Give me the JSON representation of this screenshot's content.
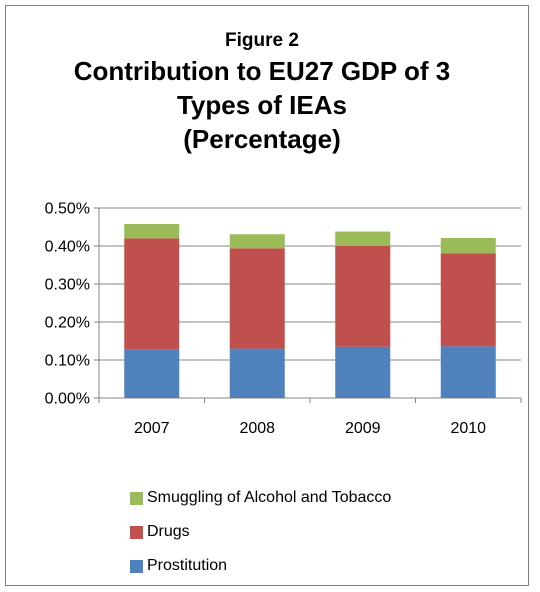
{
  "chart_data": {
    "type": "bar",
    "stacked": true,
    "figure_label": "Figure 2",
    "title_lines": [
      "Contribution to EU27 GDP of 3",
      "Types of IEAs",
      "(Percentage)"
    ],
    "categories": [
      "2007",
      "2008",
      "2009",
      "2010"
    ],
    "series": [
      {
        "name": "Prostitution",
        "color": "#4f81bd",
        "values": [
          0.128,
          0.13,
          0.135,
          0.136
        ]
      },
      {
        "name": "Drugs",
        "color": "#c0504d",
        "values": [
          0.292,
          0.264,
          0.265,
          0.245
        ]
      },
      {
        "name": "Smuggling of Alcohol and Tobacco",
        "color": "#9bbb59",
        "values": [
          0.038,
          0.037,
          0.038,
          0.04
        ]
      }
    ],
    "ylim": [
      0,
      0.5
    ],
    "yticks": [
      0,
      0.1,
      0.2,
      0.3,
      0.4,
      0.5
    ],
    "ytick_labels": [
      "0.00%",
      "0.10%",
      "0.20%",
      "0.30%",
      "0.40%",
      "0.50%"
    ],
    "grid": true,
    "legend_position": "bottom",
    "legend_order": [
      "Smuggling of Alcohol and Tobacco",
      "Drugs",
      "Prostitution"
    ]
  }
}
